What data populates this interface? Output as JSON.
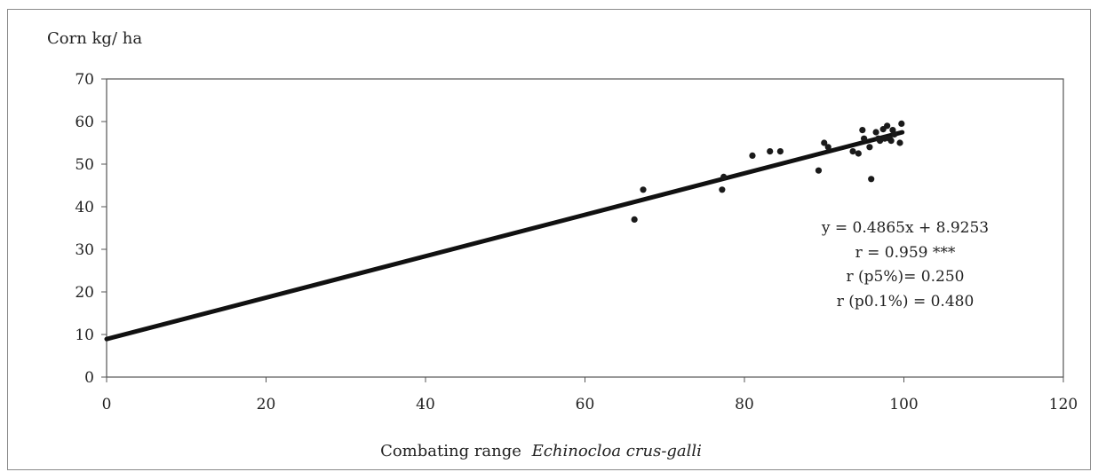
{
  "chart_data": {
    "type": "scatter",
    "title": "",
    "ylabel": "Corn kg/ ha",
    "xlabel": "Combating range",
    "xlabel_italic": "Echinocloa crus-galli",
    "xlim": [
      0,
      120
    ],
    "ylim": [
      0,
      70
    ],
    "xticks": [
      0,
      20,
      40,
      60,
      80,
      100,
      120
    ],
    "yticks": [
      0,
      10,
      20,
      30,
      40,
      50,
      60,
      70
    ],
    "grid": false,
    "legend": "none",
    "series": [
      {
        "points": [
          [
            66.2,
            37
          ],
          [
            67.3,
            44
          ],
          [
            77.2,
            44
          ],
          [
            77.4,
            47
          ],
          [
            81.0,
            52
          ],
          [
            83.2,
            53
          ],
          [
            84.5,
            53
          ],
          [
            89.3,
            48.5
          ],
          [
            90.0,
            55
          ],
          [
            90.5,
            54
          ],
          [
            93.6,
            53
          ],
          [
            94.3,
            52.5
          ],
          [
            94.8,
            58
          ],
          [
            95.0,
            56
          ],
          [
            95.7,
            54
          ],
          [
            95.9,
            46.5
          ],
          [
            96.5,
            57.5
          ],
          [
            96.8,
            56
          ],
          [
            97.0,
            55.5
          ],
          [
            97.4,
            58.2
          ],
          [
            97.6,
            56
          ],
          [
            97.9,
            59
          ],
          [
            98.2,
            56
          ],
          [
            98.4,
            55.5
          ],
          [
            98.6,
            58
          ],
          [
            98.8,
            57
          ],
          [
            99.5,
            55
          ],
          [
            99.7,
            59.5
          ]
        ]
      }
    ],
    "trendline": {
      "slope": 0.4865,
      "intercept": 8.9253,
      "x_range": [
        0,
        99.8
      ]
    },
    "annotations": [
      "y = 0.4865x + 8.9253",
      "r = 0.959 ***",
      "r (p5%)= 0.250",
      "r (p0.1%)  = 0.480"
    ],
    "colors": {
      "points": "#1a1a1a",
      "trendline": "#111111",
      "axis": "#555555",
      "frame": "#8a8a8a"
    }
  }
}
